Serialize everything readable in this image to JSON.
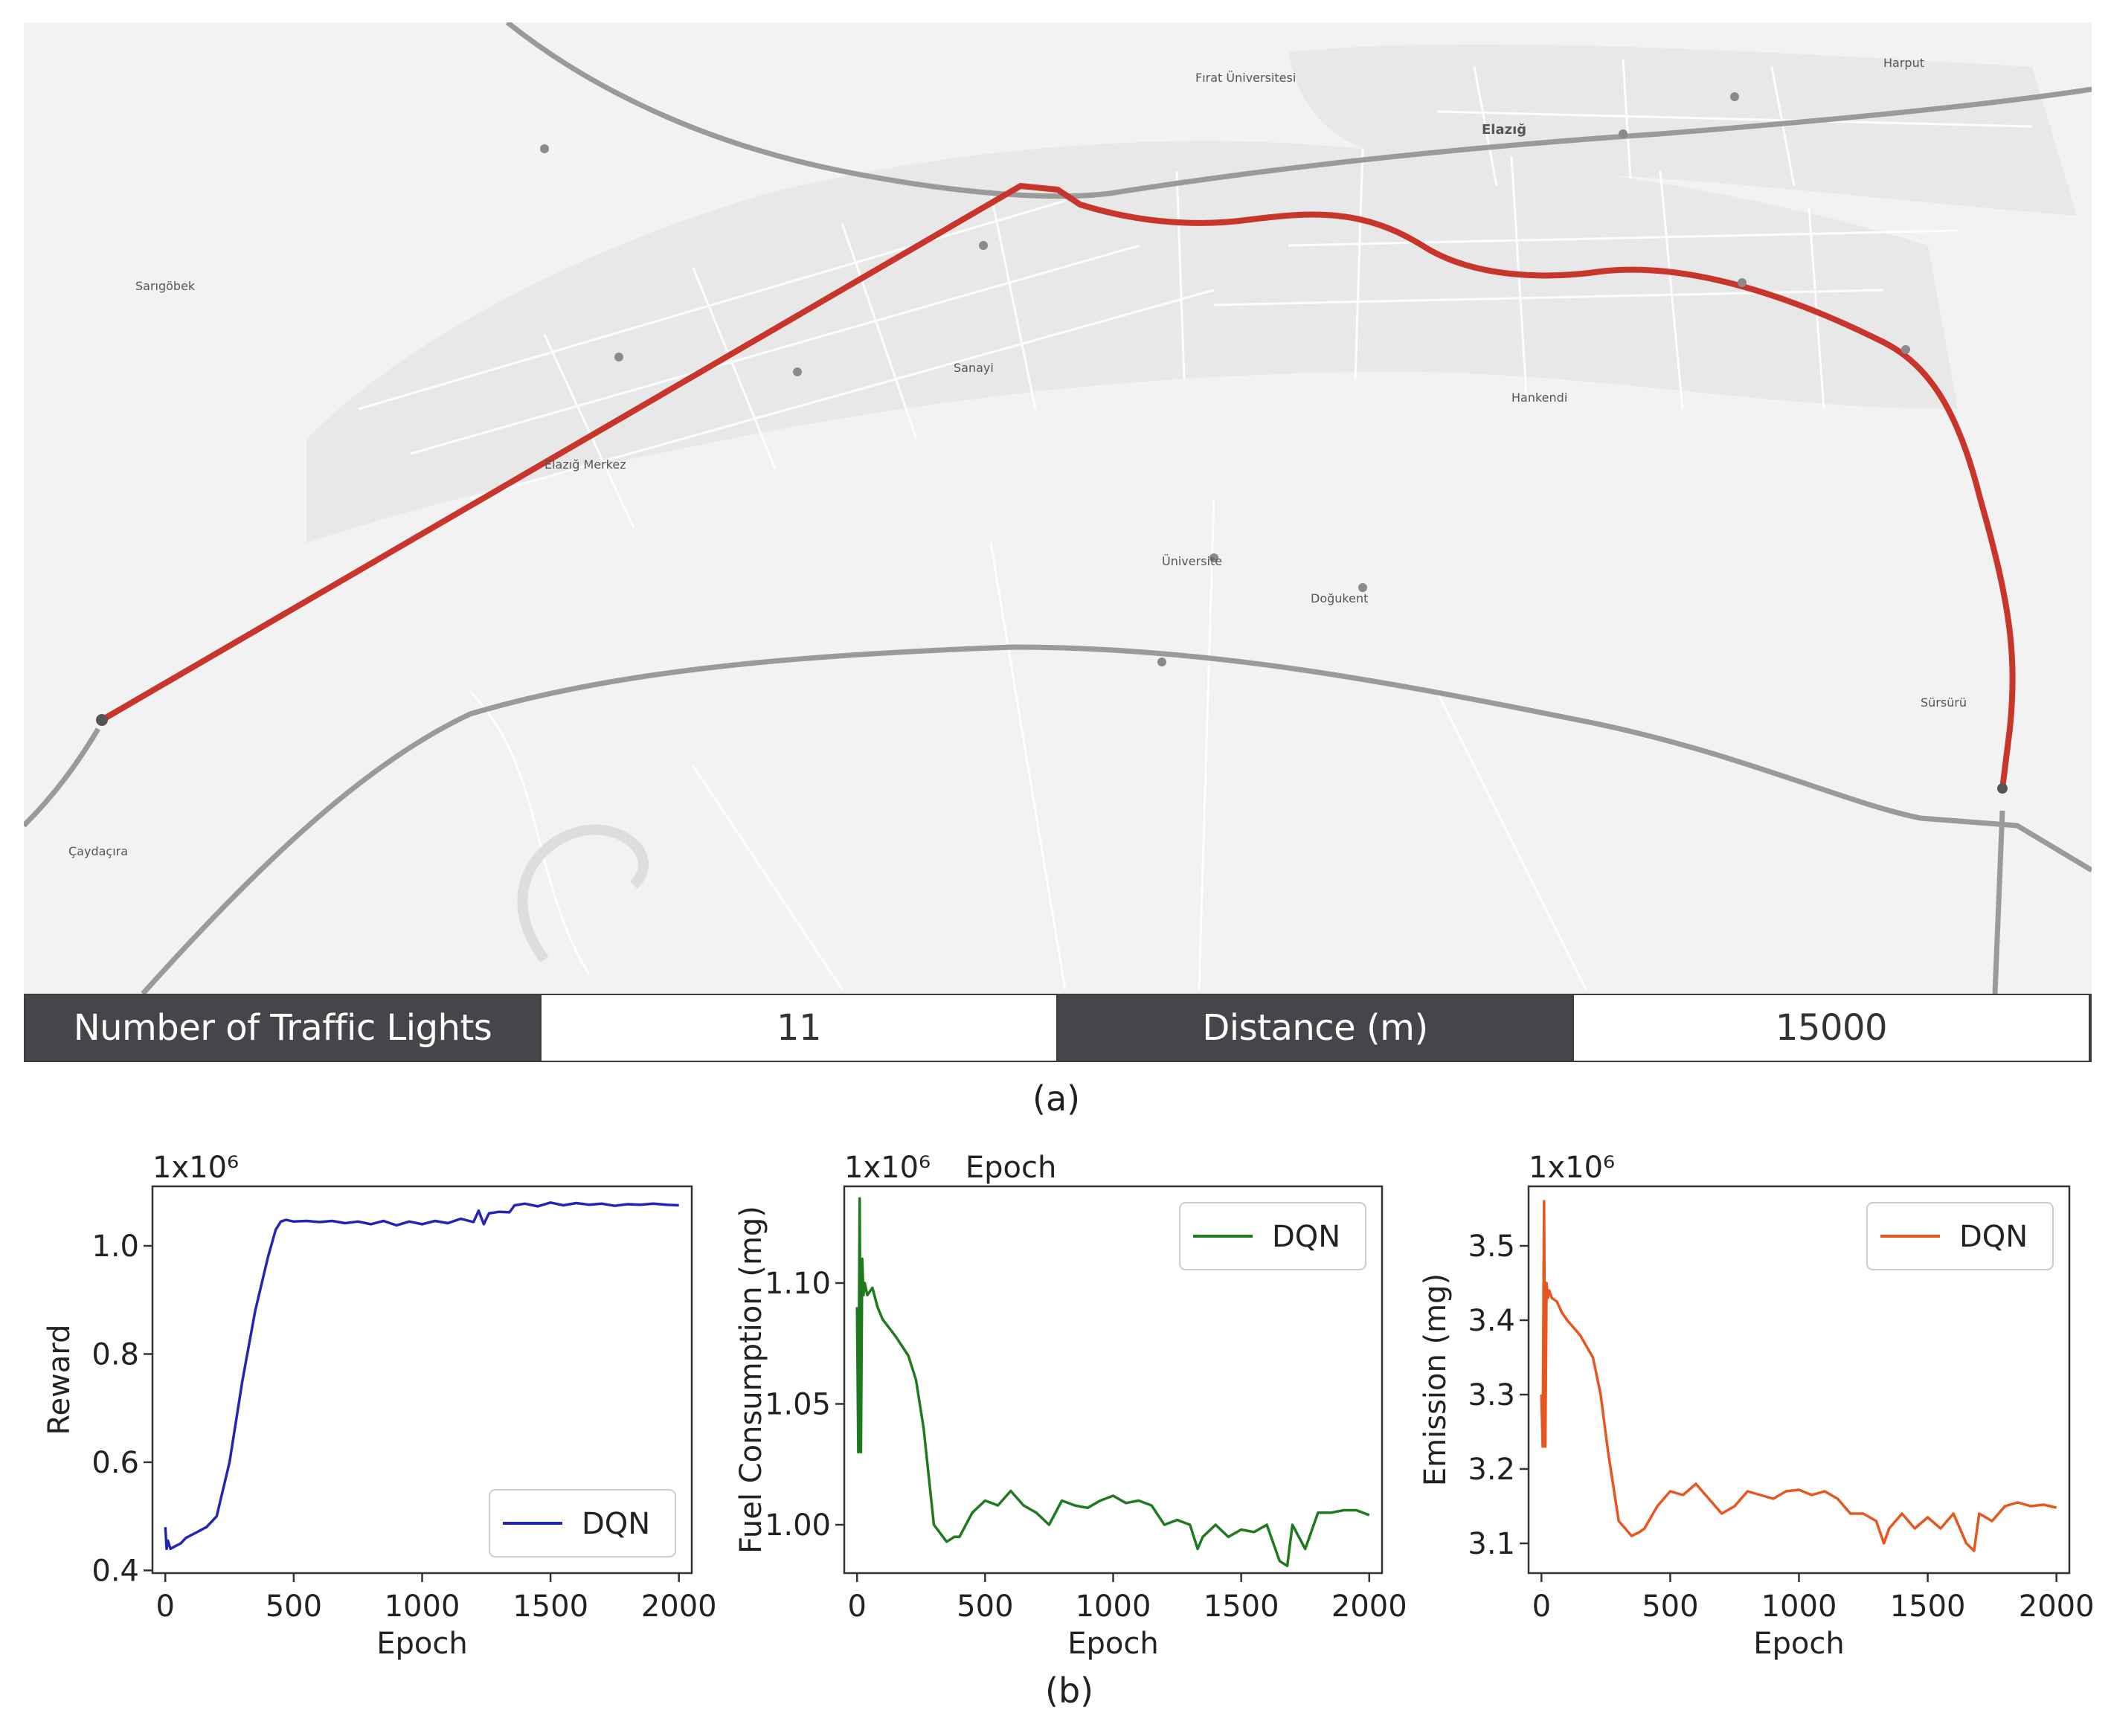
{
  "map": {
    "city_label": "Elazığ",
    "place_labels": [
      "Sarıgöbek",
      "Fırat Üniversitesi",
      "Elazığ Merkez",
      "Sanayi",
      "Hankendi",
      "Harput",
      "Üniversite",
      "Doğukent",
      "Sürsürü",
      "Çaydaçıra"
    ],
    "route_color": "#c8352b"
  },
  "info": {
    "label1": "Number of Traffic Lights",
    "value1": "11",
    "label2": "Distance (m)",
    "value2": "15000"
  },
  "captions": {
    "a": "(a)",
    "b": "(b)"
  },
  "chart_data": [
    {
      "type": "line",
      "title": "",
      "xlabel": "Epoch",
      "ylabel": "Reward",
      "offset_text": "1x10⁶",
      "xlim": [
        -50,
        2050
      ],
      "ylim": [
        0.395,
        1.11
      ],
      "xticks": [
        0,
        500,
        1000,
        1500,
        2000
      ],
      "yticks": [
        0.4,
        0.6,
        0.8,
        1.0
      ],
      "ytick_labels": [
        "0.4",
        "0.6",
        "0.8",
        "1.0"
      ],
      "legend": "bottom-right",
      "series": [
        {
          "name": "DQN",
          "color": "#2424b8",
          "x": [
            0,
            5,
            10,
            20,
            40,
            60,
            80,
            100,
            120,
            140,
            160,
            180,
            200,
            250,
            300,
            350,
            400,
            430,
            450,
            470,
            500,
            550,
            600,
            650,
            700,
            750,
            800,
            850,
            900,
            950,
            1000,
            1050,
            1100,
            1150,
            1200,
            1220,
            1240,
            1260,
            1300,
            1340,
            1360,
            1400,
            1450,
            1500,
            1550,
            1600,
            1650,
            1700,
            1750,
            1800,
            1850,
            1900,
            1950,
            2000
          ],
          "values": [
            0.48,
            0.44,
            0.455,
            0.44,
            0.445,
            0.45,
            0.46,
            0.465,
            0.47,
            0.475,
            0.48,
            0.49,
            0.5,
            0.6,
            0.75,
            0.88,
            0.98,
            1.03,
            1.045,
            1.048,
            1.045,
            1.046,
            1.044,
            1.046,
            1.042,
            1.045,
            1.04,
            1.046,
            1.038,
            1.045,
            1.04,
            1.046,
            1.042,
            1.05,
            1.044,
            1.065,
            1.04,
            1.06,
            1.063,
            1.062,
            1.075,
            1.078,
            1.073,
            1.08,
            1.075,
            1.079,
            1.076,
            1.078,
            1.074,
            1.077,
            1.076,
            1.078,
            1.076,
            1.075
          ]
        }
      ]
    },
    {
      "type": "line",
      "title": "Epoch",
      "xlabel": "Epoch",
      "ylabel": "Fuel Consumption (mg)",
      "offset_text": "1x10⁶",
      "xlim": [
        -50,
        2050
      ],
      "ylim": [
        0.98,
        1.14
      ],
      "xticks": [
        0,
        500,
        1000,
        1500,
        2000
      ],
      "yticks": [
        1.0,
        1.05,
        1.1
      ],
      "ytick_labels": [
        "1.00",
        "1.05",
        "1.10"
      ],
      "legend": "top-right",
      "series": [
        {
          "name": "DQN",
          "color": "#1f7a1f",
          "x": [
            0,
            5,
            10,
            15,
            20,
            25,
            30,
            40,
            60,
            80,
            100,
            150,
            200,
            230,
            260,
            300,
            350,
            380,
            400,
            450,
            500,
            550,
            600,
            650,
            700,
            750,
            800,
            850,
            900,
            950,
            1000,
            1050,
            1100,
            1150,
            1200,
            1250,
            1300,
            1330,
            1350,
            1400,
            1450,
            1500,
            1550,
            1600,
            1650,
            1680,
            1700,
            1750,
            1800,
            1850,
            1900,
            1950,
            2000
          ],
          "values": [
            1.09,
            1.03,
            1.135,
            1.03,
            1.11,
            1.095,
            1.1,
            1.095,
            1.098,
            1.09,
            1.085,
            1.078,
            1.07,
            1.06,
            1.04,
            1.0,
            0.993,
            0.995,
            0.995,
            1.005,
            1.01,
            1.008,
            1.014,
            1.008,
            1.005,
            1.0,
            1.01,
            1.008,
            1.007,
            1.01,
            1.012,
            1.009,
            1.01,
            1.008,
            1.0,
            1.002,
            1.0,
            0.99,
            0.995,
            1.0,
            0.995,
            0.998,
            0.997,
            1.0,
            0.985,
            0.983,
            1.0,
            0.99,
            1.005,
            1.005,
            1.006,
            1.006,
            1.004
          ]
        }
      ]
    },
    {
      "type": "line",
      "title": "",
      "xlabel": "Epoch",
      "ylabel": "Emission (mg)",
      "offset_text": "1x10⁶",
      "xlim": [
        -50,
        2050
      ],
      "ylim": [
        3.06,
        3.58
      ],
      "xticks": [
        0,
        500,
        1000,
        1500,
        2000
      ],
      "yticks": [
        3.1,
        3.2,
        3.3,
        3.4,
        3.5
      ],
      "ytick_labels": [
        "3.1",
        "3.2",
        "3.3",
        "3.4",
        "3.5"
      ],
      "legend": "top-right",
      "series": [
        {
          "name": "DQN",
          "color": "#e8561f",
          "x": [
            0,
            5,
            10,
            15,
            20,
            25,
            30,
            40,
            60,
            80,
            100,
            150,
            200,
            230,
            260,
            300,
            350,
            380,
            400,
            450,
            500,
            550,
            600,
            650,
            700,
            750,
            800,
            850,
            900,
            950,
            1000,
            1050,
            1100,
            1150,
            1200,
            1250,
            1300,
            1330,
            1350,
            1400,
            1450,
            1500,
            1550,
            1600,
            1650,
            1680,
            1700,
            1750,
            1800,
            1850,
            1900,
            1950,
            2000
          ],
          "values": [
            3.3,
            3.23,
            3.56,
            3.23,
            3.45,
            3.43,
            3.44,
            3.43,
            3.425,
            3.41,
            3.4,
            3.38,
            3.35,
            3.3,
            3.22,
            3.13,
            3.11,
            3.115,
            3.12,
            3.15,
            3.17,
            3.165,
            3.18,
            3.16,
            3.14,
            3.15,
            3.17,
            3.165,
            3.16,
            3.17,
            3.172,
            3.165,
            3.17,
            3.16,
            3.14,
            3.14,
            3.13,
            3.1,
            3.12,
            3.14,
            3.12,
            3.135,
            3.12,
            3.14,
            3.1,
            3.09,
            3.14,
            3.13,
            3.15,
            3.155,
            3.15,
            3.152,
            3.148
          ]
        }
      ]
    }
  ]
}
